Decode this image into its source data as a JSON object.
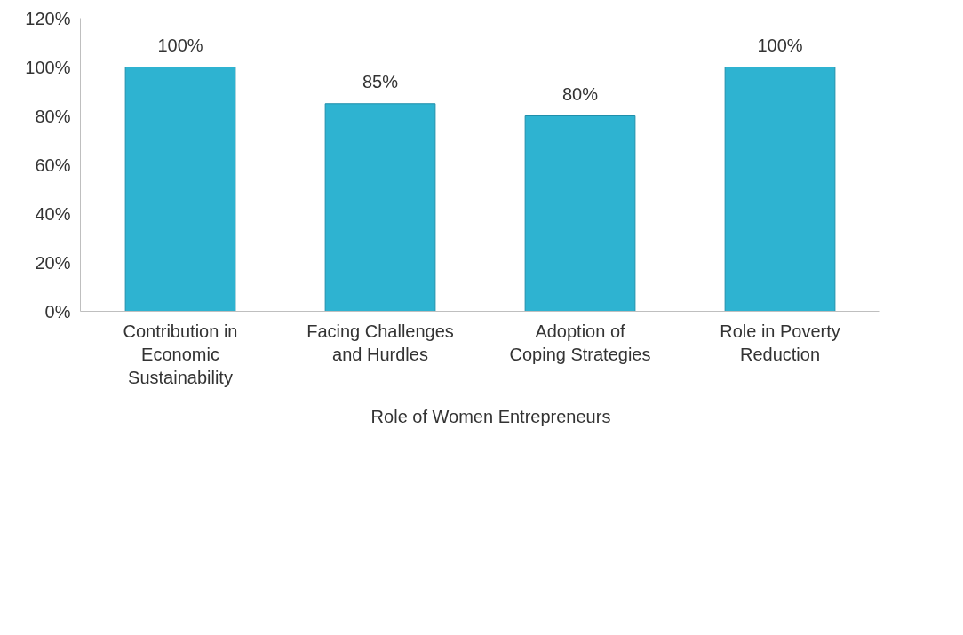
{
  "chart_data": {
    "type": "bar",
    "categories": [
      "Contribution in Economic Sustainability",
      "Facing Challenges and Hurdles",
      "Adoption of Coping Strategies",
      "Role in Poverty Reduction"
    ],
    "series": [
      {
        "name": "Role of Women Entrepreneurs",
        "color": "#2eb3d1",
        "values": [
          100,
          85,
          80,
          100
        ]
      }
    ],
    "value_labels": [
      "100%",
      "85%",
      "80%",
      "100%"
    ],
    "ylim": [
      0,
      120
    ],
    "yticks": [
      {
        "value": 0,
        "label": "0%"
      },
      {
        "value": 20,
        "label": "20%"
      },
      {
        "value": 40,
        "label": "40%"
      },
      {
        "value": 60,
        "label": "60%"
      },
      {
        "value": 80,
        "label": "80%"
      },
      {
        "value": 100,
        "label": "100%"
      },
      {
        "value": 120,
        "label": "120%"
      }
    ],
    "grid": false,
    "legend": "bottom"
  }
}
